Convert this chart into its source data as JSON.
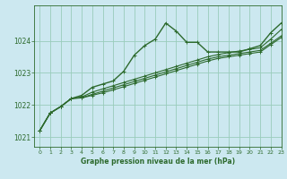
{
  "title": "Graphe pression niveau de la mer (hPa)",
  "background_color": "#cce8f0",
  "grid_color": "#99ccbb",
  "line_color": "#2d6a2d",
  "xlim": [
    -0.5,
    23
  ],
  "ylim": [
    1020.7,
    1025.1
  ],
  "xticks": [
    0,
    1,
    2,
    3,
    4,
    5,
    6,
    7,
    8,
    9,
    10,
    11,
    12,
    13,
    14,
    15,
    16,
    17,
    18,
    19,
    20,
    21,
    22,
    23
  ],
  "yticks": [
    1021,
    1022,
    1023,
    1024
  ],
  "series": [
    [
      1021.2,
      1021.75,
      1021.95,
      1022.2,
      1022.3,
      1022.55,
      1022.65,
      1022.75,
      1023.05,
      1023.55,
      1023.85,
      1024.05,
      1024.55,
      1024.3,
      1023.95,
      1023.95,
      1023.65,
      1023.65,
      1023.65,
      1023.65,
      1023.75,
      1023.85,
      1024.25,
      1024.55
    ],
    [
      1021.2,
      1021.75,
      1021.95,
      1022.2,
      1022.25,
      1022.4,
      1022.5,
      1022.6,
      1022.7,
      1022.8,
      1022.9,
      1023.0,
      1023.1,
      1023.2,
      1023.3,
      1023.4,
      1023.5,
      1023.57,
      1023.63,
      1023.68,
      1023.73,
      1023.78,
      1024.05,
      1024.35
    ],
    [
      1021.2,
      1021.75,
      1021.95,
      1022.2,
      1022.23,
      1022.33,
      1022.43,
      1022.53,
      1022.63,
      1022.73,
      1022.83,
      1022.93,
      1023.03,
      1023.13,
      1023.23,
      1023.33,
      1023.43,
      1023.5,
      1023.55,
      1023.6,
      1023.65,
      1023.7,
      1023.92,
      1024.15
    ],
    [
      1021.2,
      1021.75,
      1021.95,
      1022.2,
      1022.22,
      1022.3,
      1022.38,
      1022.47,
      1022.57,
      1022.67,
      1022.77,
      1022.87,
      1022.97,
      1023.07,
      1023.17,
      1023.27,
      1023.37,
      1023.45,
      1023.5,
      1023.55,
      1023.6,
      1023.65,
      1023.88,
      1024.1
    ]
  ]
}
